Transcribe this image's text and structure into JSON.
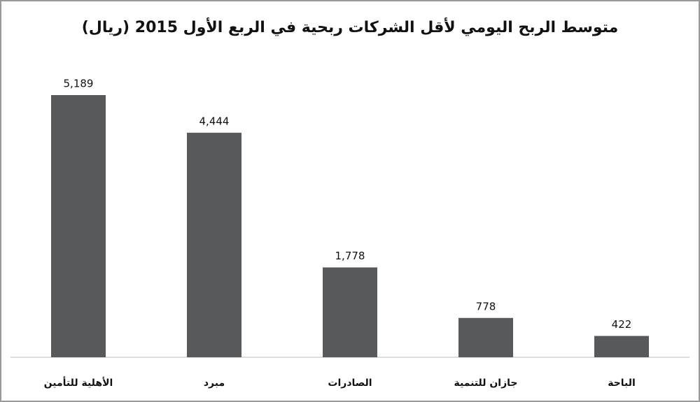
{
  "chart_data": {
    "type": "bar",
    "title": "متوسط الربح اليومي لأقل الشركات ربحية في الربع الأول 2015 (ريال)",
    "categories": [
      "الأهلية للتأمين",
      "مبرد",
      "الصادرات",
      "جازان للتنمية",
      "الباحة"
    ],
    "values": [
      5189,
      4444,
      1778,
      778,
      422
    ],
    "value_labels": [
      "5,189",
      "4,444",
      "1,778",
      "778",
      "422"
    ],
    "color": "#58595b"
  }
}
